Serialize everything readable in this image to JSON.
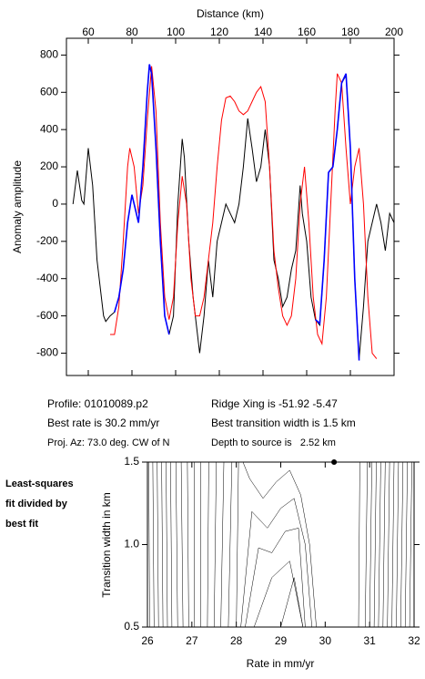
{
  "chart_data": [
    {
      "type": "line",
      "xlabel": "Distance (km)",
      "ylabel": "Anomaly amplitude",
      "xlim": [
        50,
        200
      ],
      "xticks": [
        60,
        80,
        100,
        120,
        140,
        160,
        180,
        200
      ],
      "ylim": [
        -920,
        890
      ],
      "yticks": [
        -800,
        -600,
        -400,
        -200,
        0,
        200,
        400,
        600,
        800
      ],
      "series": [
        {
          "color": "#000000",
          "width": 1,
          "x": [
            53,
            55,
            57,
            58,
            60,
            62,
            64,
            67,
            68,
            70,
            72,
            74,
            76,
            78,
            80,
            81,
            83,
            85,
            87,
            88,
            89,
            91,
            93,
            95,
            97,
            99,
            101,
            103,
            104,
            106,
            108,
            111,
            113,
            115,
            117,
            119,
            121,
            123,
            125,
            127,
            129,
            131,
            133,
            135,
            137,
            139,
            141,
            143,
            145,
            147,
            149,
            151,
            153,
            155,
            157,
            158,
            160,
            162,
            164,
            166,
            168,
            170,
            172,
            174,
            176,
            178,
            180,
            182,
            184,
            186,
            188,
            190,
            192,
            194,
            196,
            198,
            200
          ],
          "values": [
            0,
            180,
            20,
            0,
            300,
            100,
            -300,
            -600,
            -630,
            -600,
            -580,
            -500,
            -350,
            -100,
            50,
            0,
            -100,
            200,
            600,
            740,
            700,
            300,
            -200,
            -600,
            -700,
            -600,
            0,
            350,
            250,
            -200,
            -500,
            -800,
            -600,
            -300,
            -500,
            -200,
            -100,
            0,
            -50,
            -100,
            0,
            200,
            460,
            300,
            120,
            200,
            400,
            200,
            -300,
            -400,
            -550,
            -500,
            -350,
            -250,
            100,
            -50,
            -200,
            -500,
            -620,
            -650,
            -300,
            170,
            200,
            400,
            650,
            690,
            300,
            -400,
            -830,
            -550,
            -200,
            -100,
            0,
            -100,
            -250,
            -50,
            -100
          ]
        },
        {
          "color": "#ff0000",
          "width": 1,
          "x": [
            70,
            72,
            74,
            76,
            78,
            79,
            81,
            83,
            85,
            87,
            89,
            91,
            93,
            95,
            97,
            99,
            101,
            103,
            105,
            107,
            109,
            111,
            113,
            115,
            117,
            119,
            121,
            123,
            125,
            127,
            129,
            131,
            133,
            135,
            137,
            139,
            141,
            143,
            145,
            147,
            149,
            151,
            153,
            155,
            157,
            159,
            161,
            163,
            165,
            167,
            169,
            171,
            173,
            174,
            176,
            178,
            180,
            182,
            184,
            186,
            188,
            190,
            192
          ],
          "values": [
            -700,
            -700,
            -550,
            -200,
            200,
            300,
            200,
            -50,
            100,
            450,
            740,
            500,
            -100,
            -500,
            -620,
            -500,
            -100,
            150,
            0,
            -400,
            -600,
            -600,
            -500,
            -300,
            -100,
            200,
            450,
            570,
            580,
            550,
            500,
            480,
            500,
            550,
            600,
            630,
            550,
            200,
            -250,
            -450,
            -600,
            -650,
            -600,
            -400,
            0,
            200,
            -100,
            -500,
            -700,
            -750,
            -500,
            0,
            500,
            700,
            650,
            300,
            0,
            200,
            300,
            0,
            -500,
            -800,
            -830
          ]
        },
        {
          "color": "#0000ff",
          "width": 1.6,
          "x": [
            72,
            74,
            76,
            78,
            80,
            81,
            83,
            85,
            87,
            88,
            89,
            91,
            93,
            95,
            97,
            130,
            164,
            166,
            168,
            170,
            172,
            174,
            176,
            178,
            180,
            182,
            184
          ],
          "values": [
            -580,
            -500,
            -350,
            -100,
            50,
            0,
            -100,
            200,
            600,
            750,
            700,
            300,
            -200,
            -600,
            -700,
            null,
            -620,
            -640,
            -300,
            170,
            200,
            400,
            650,
            700,
            300,
            -400,
            -840
          ]
        }
      ]
    },
    {
      "type": "contour",
      "xlabel": "Rate in mm/yr",
      "ylabel": "Transition width in km",
      "xlim": [
        26,
        32
      ],
      "xticks": [
        26,
        27,
        28,
        29,
        30,
        31,
        32
      ],
      "ylim": [
        0.5,
        1.5
      ],
      "yticks": [
        0.5,
        {
          "value": 1.0,
          "label": "1.0"
        },
        1.5
      ],
      "point": {
        "x": 30.2,
        "y": 1.5
      },
      "contours": [
        {
          "x": [
            26.05,
            26.03
          ],
          "y": [
            0.5,
            1.5
          ]
        },
        {
          "x": [
            26.15,
            26.12
          ],
          "y": [
            0.5,
            1.5
          ]
        },
        {
          "x": [
            26.25,
            26.22
          ],
          "y": [
            0.5,
            1.5
          ]
        },
        {
          "x": [
            26.35,
            26.32
          ],
          "y": [
            0.5,
            1.5
          ]
        },
        {
          "x": [
            26.45,
            26.42
          ],
          "y": [
            0.5,
            1.5
          ]
        },
        {
          "x": [
            26.55,
            26.52
          ],
          "y": [
            0.5,
            1.5
          ]
        },
        {
          "x": [
            26.68,
            26.64
          ],
          "y": [
            0.5,
            1.5
          ]
        },
        {
          "x": [
            26.8,
            26.76
          ],
          "y": [
            0.5,
            1.5
          ]
        },
        {
          "x": [
            26.93,
            26.9
          ],
          "y": [
            0.5,
            1.5
          ]
        },
        {
          "x": [
            27.06,
            27.05
          ],
          "y": [
            0.5,
            1.5
          ]
        },
        {
          "x": [
            27.2,
            27.2
          ],
          "y": [
            0.5,
            1.5
          ]
        },
        {
          "x": [
            27.35,
            27.38
          ],
          "y": [
            0.5,
            1.5
          ]
        },
        {
          "x": [
            27.5,
            27.55
          ],
          "y": [
            0.5,
            1.5
          ]
        },
        {
          "x": [
            27.65,
            27.72
          ],
          "y": [
            0.5,
            1.5
          ]
        },
        {
          "x": [
            27.82,
            27.9
          ],
          "y": [
            0.5,
            1.5
          ]
        },
        {
          "x": [
            28.0,
            28.05
          ],
          "y": [
            0.5,
            1.5
          ]
        },
        {
          "x": [
            28.15,
            28.3,
            28.6,
            28.9,
            29.2,
            29.45,
            29.65,
            29.8
          ],
          "y": [
            1.5,
            1.4,
            1.28,
            1.38,
            1.45,
            1.3,
            1.0,
            0.5
          ]
        },
        {
          "x": [
            28.1,
            28.35,
            28.7,
            29.0,
            29.3,
            29.55,
            29.7
          ],
          "y": [
            0.5,
            1.2,
            1.1,
            1.22,
            1.28,
            1.0,
            0.5
          ]
        },
        {
          "x": [
            28.2,
            28.5,
            28.8,
            29.1,
            29.4,
            29.55
          ],
          "y": [
            0.5,
            0.98,
            0.95,
            1.08,
            1.1,
            0.5
          ]
        },
        {
          "x": [
            28.4,
            28.8,
            29.2,
            29.5
          ],
          "y": [
            0.5,
            0.8,
            0.9,
            0.5
          ]
        },
        {
          "x": [
            29.0,
            29.3,
            29.5
          ],
          "y": [
            0.5,
            0.8,
            0.5
          ]
        },
        {
          "x": [
            30.75,
            30.78
          ],
          "y": [
            0.5,
            1.5
          ]
        },
        {
          "x": [
            30.9,
            30.95
          ],
          "y": [
            0.5,
            1.5
          ]
        },
        {
          "x": [
            31.0,
            31.05
          ],
          "y": [
            0.5,
            1.5
          ]
        },
        {
          "x": [
            31.1,
            31.15
          ],
          "y": [
            0.5,
            1.5
          ]
        },
        {
          "x": [
            31.2,
            31.25
          ],
          "y": [
            0.5,
            1.5
          ]
        },
        {
          "x": [
            31.3,
            31.35
          ],
          "y": [
            0.5,
            1.5
          ]
        },
        {
          "x": [
            31.4,
            31.45
          ],
          "y": [
            0.5,
            1.5
          ]
        },
        {
          "x": [
            31.5,
            31.55
          ],
          "y": [
            0.5,
            1.5
          ]
        },
        {
          "x": [
            31.6,
            31.65
          ],
          "y": [
            0.5,
            1.5
          ]
        },
        {
          "x": [
            31.7,
            31.75
          ],
          "y": [
            0.5,
            1.5
          ]
        },
        {
          "x": [
            31.8,
            31.85
          ],
          "y": [
            0.5,
            1.5
          ]
        },
        {
          "x": [
            31.9,
            31.95
          ],
          "y": [
            0.5,
            1.5
          ]
        }
      ]
    }
  ],
  "info": {
    "profile": "Profile: 01010089.p2",
    "ridge": "Ridge Xing is -51.92 -5.47",
    "rate": "Best rate is 30.2 mm/yr",
    "width": "Best transition width is 1.5 km",
    "azimuth": "Proj. Az: 73.0 deg. CW of N",
    "depth": "Depth to source is   2.52 km"
  },
  "side_label": [
    "Least-squares",
    "fit divided by",
    "best fit"
  ]
}
